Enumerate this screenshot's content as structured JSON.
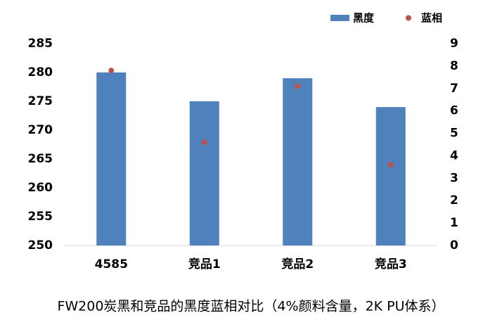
{
  "chart_data": {
    "type": "bar",
    "categories": [
      "4585",
      "竞品1",
      "竞品2",
      "竞品3"
    ],
    "series": [
      {
        "name": "黑度",
        "type": "bar",
        "color": "#4f81bd",
        "values": [
          280,
          275,
          279,
          274
        ]
      },
      {
        "name": "蓝相",
        "type": "scatter",
        "color": "#c0504d",
        "axis": "y2",
        "values": [
          7.8,
          4.6,
          7.1,
          3.6
        ]
      }
    ],
    "ylim": [
      250,
      285
    ],
    "yticks": [
      250,
      255,
      260,
      265,
      270,
      275,
      280,
      285
    ],
    "y2lim": [
      0,
      9
    ],
    "y2ticks": [
      0,
      1,
      2,
      3,
      4,
      5,
      6,
      7,
      8,
      9
    ],
    "legend": "top-right",
    "caption": "FW200炭黑和竞品的黑度蓝相对比（4%颜料含量，2K PU体系）"
  }
}
